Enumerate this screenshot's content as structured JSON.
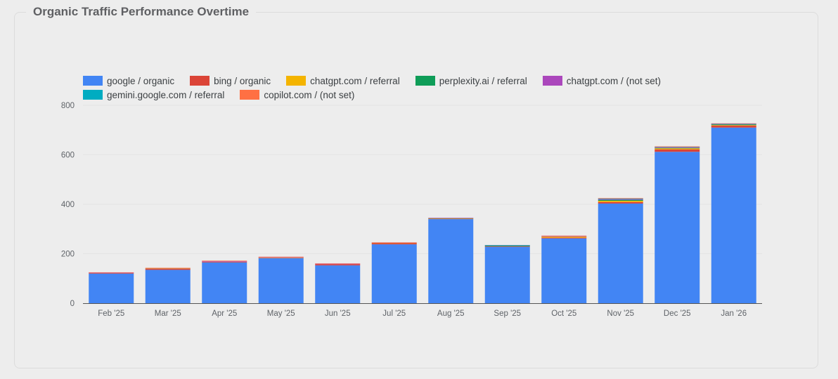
{
  "panel": {
    "title": "Organic Traffic Performance Overtime"
  },
  "colors": {
    "google": "#4285f4",
    "bing": "#db4437",
    "chatgpt_referral": "#f4b400",
    "perplexity": "#0f9d58",
    "chatgpt_notset": "#ab47bc",
    "gemini": "#00acc1",
    "copilot": "#ff7043"
  },
  "chart_data": {
    "type": "bar",
    "stacked": true,
    "categories": [
      "Feb '25",
      "Mar '25",
      "Apr '25",
      "May '25",
      "Jun '25",
      "Jul '25",
      "Aug '25",
      "Sep '25",
      "Oct '25",
      "Nov '25",
      "Dec '25",
      "Jan '26"
    ],
    "ylim": [
      0,
      800
    ],
    "yticks": [
      "0",
      "200",
      "400",
      "600",
      "800"
    ],
    "grid": true,
    "legend_position": "top-left",
    "series": [
      {
        "name": "google / organic",
        "color": "#4285f4",
        "values": [
          120,
          135,
          165,
          182,
          153,
          238,
          340,
          228,
          262,
          403,
          612,
          710
        ]
      },
      {
        "name": "bing / organic",
        "color": "#db4437",
        "values": [
          3,
          4,
          3,
          2,
          5,
          5,
          2,
          2,
          3,
          6,
          10,
          8
        ]
      },
      {
        "name": "chatgpt.com / referral",
        "color": "#f4b400",
        "values": [
          0,
          2,
          0,
          1,
          0,
          1,
          1,
          0,
          4,
          5,
          4,
          2
        ]
      },
      {
        "name": "perplexity.ai / referral",
        "color": "#0f9d58",
        "values": [
          0,
          0,
          0,
          0,
          0,
          0,
          1,
          3,
          0,
          4,
          2,
          3
        ]
      },
      {
        "name": "chatgpt.com / (not set)",
        "color": "#ab47bc",
        "values": [
          1,
          1,
          2,
          2,
          2,
          1,
          1,
          1,
          2,
          3,
          3,
          2
        ]
      },
      {
        "name": "gemini.google.com / referral",
        "color": "#00acc1",
        "values": [
          0,
          0,
          0,
          0,
          0,
          0,
          0,
          1,
          0,
          2,
          1,
          1
        ]
      },
      {
        "name": "copilot.com / (not set)",
        "color": "#ff7043",
        "values": [
          1,
          1,
          2,
          1,
          1,
          1,
          0,
          0,
          2,
          2,
          2,
          1
        ]
      }
    ]
  }
}
